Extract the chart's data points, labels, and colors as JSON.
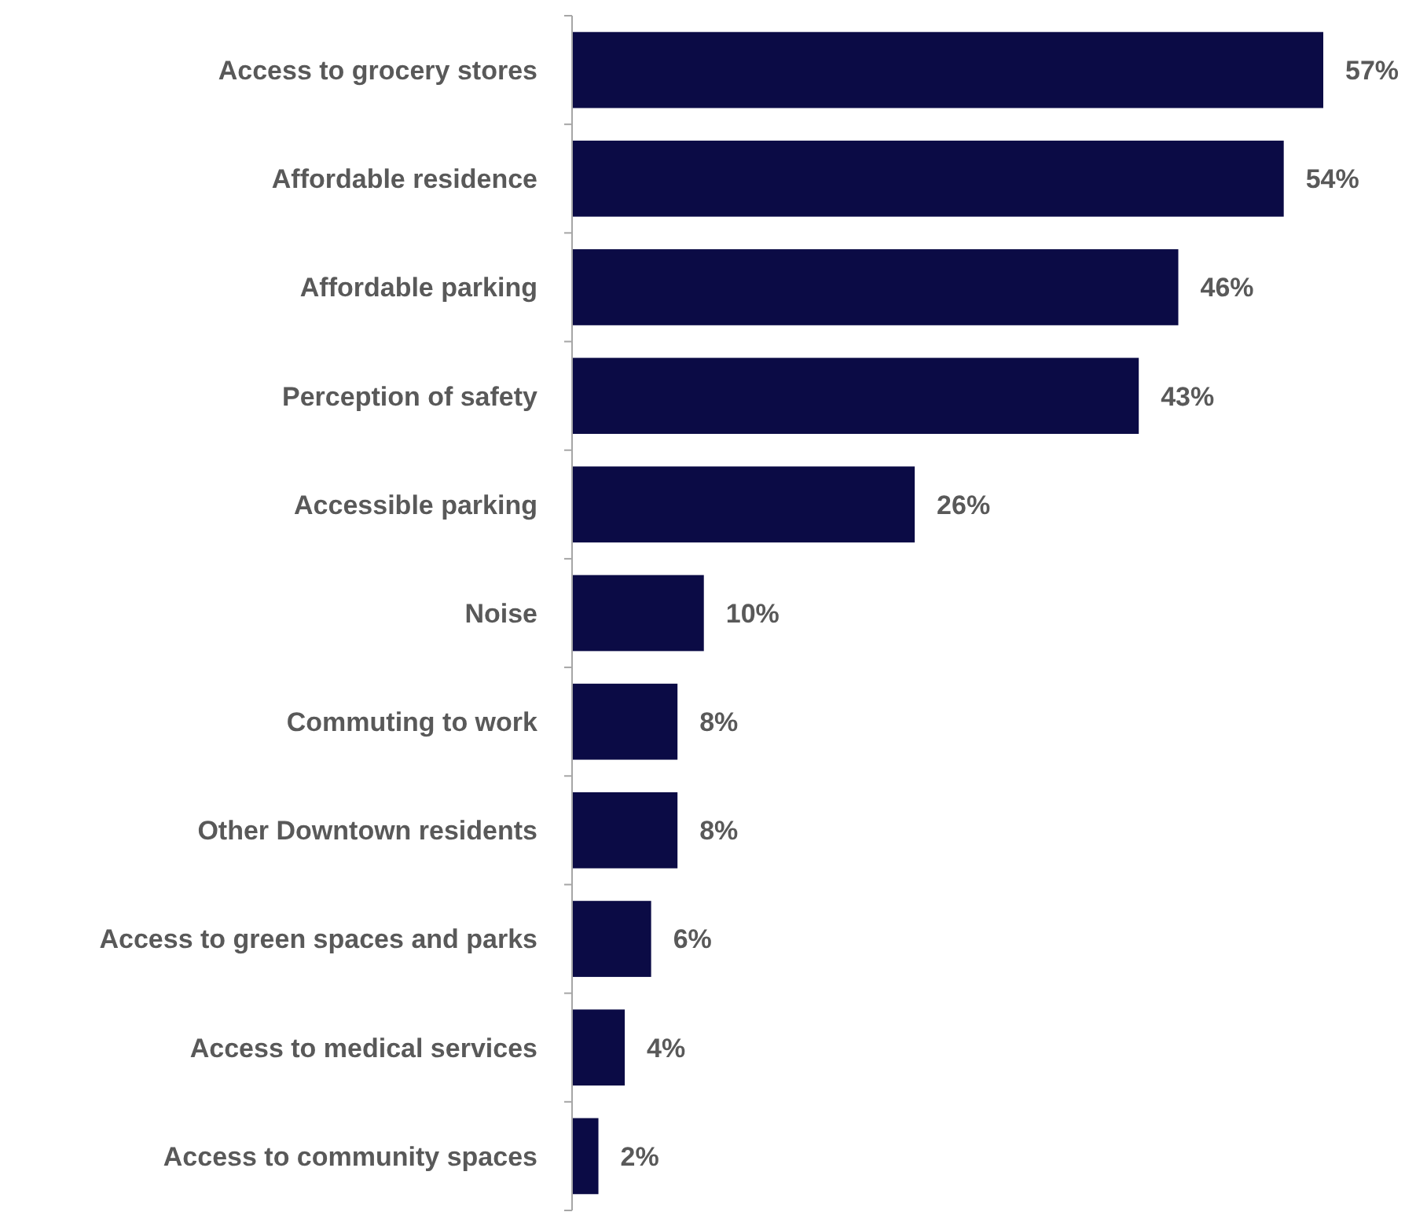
{
  "chart_data": {
    "type": "bar",
    "orientation": "horizontal",
    "categories": [
      "Access to grocery stores",
      "Affordable residence",
      "Affordable parking",
      "Perception of safety",
      "Accessible parking",
      "Noise",
      "Commuting to work",
      "Other Downtown residents",
      "Access to green spaces and parks",
      "Access to medical services",
      "Access to community spaces"
    ],
    "values": [
      57,
      54,
      46,
      43,
      26,
      10,
      8,
      8,
      6,
      4,
      2
    ],
    "color": "#0b0b45",
    "data_labels": true,
    "value_labels": [
      "57%",
      "54%",
      "46%",
      "43%",
      "26%",
      "10%",
      "8%",
      "8%",
      "6%",
      "4%",
      "2%"
    ]
  }
}
